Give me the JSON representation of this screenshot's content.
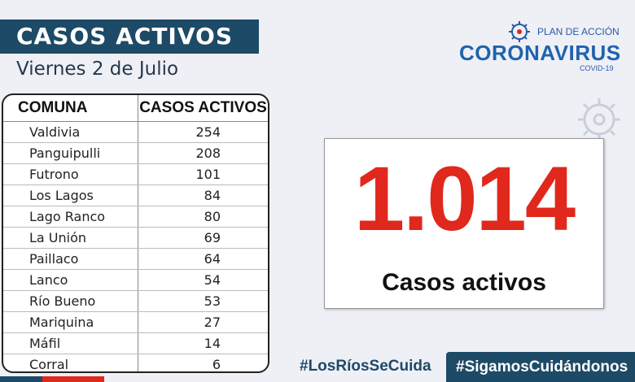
{
  "header": {
    "title": "CASOS ACTIVOS",
    "date": "Viernes 2 de Julio"
  },
  "table": {
    "headers": [
      "COMUNA",
      "CASOS ACTIVOS"
    ],
    "rows": [
      {
        "comuna": "Valdivia",
        "casos": "254"
      },
      {
        "comuna": "Panguipulli",
        "casos": "208"
      },
      {
        "comuna": "Futrono",
        "casos": "101"
      },
      {
        "comuna": "Los Lagos",
        "casos": "84"
      },
      {
        "comuna": "Lago Ranco",
        "casos": "80"
      },
      {
        "comuna": "La Unión",
        "casos": "69"
      },
      {
        "comuna": "Paillaco",
        "casos": "64"
      },
      {
        "comuna": "Lanco",
        "casos": "54"
      },
      {
        "comuna": "Río Bueno",
        "casos": "53"
      },
      {
        "comuna": "Mariquina",
        "casos": "27"
      },
      {
        "comuna": "Máfil",
        "casos": "14"
      },
      {
        "comuna": "Corral",
        "casos": "6"
      }
    ]
  },
  "logo": {
    "plan": "PLAN DE ACCIÓN",
    "main": "CORONAVIRUS",
    "sub": "COVID-19",
    "icon": "virus-icon"
  },
  "stat": {
    "number": "1.014",
    "label": "Casos activos"
  },
  "footer": {
    "hashtag1": "#LosRíosSeCuida",
    "hashtag2": "#SigamosCuidándonos"
  },
  "colors": {
    "navy": "#1d4a66",
    "red": "#e0281c",
    "logo_blue": "#1f63ad",
    "background": "#eef0f6"
  }
}
